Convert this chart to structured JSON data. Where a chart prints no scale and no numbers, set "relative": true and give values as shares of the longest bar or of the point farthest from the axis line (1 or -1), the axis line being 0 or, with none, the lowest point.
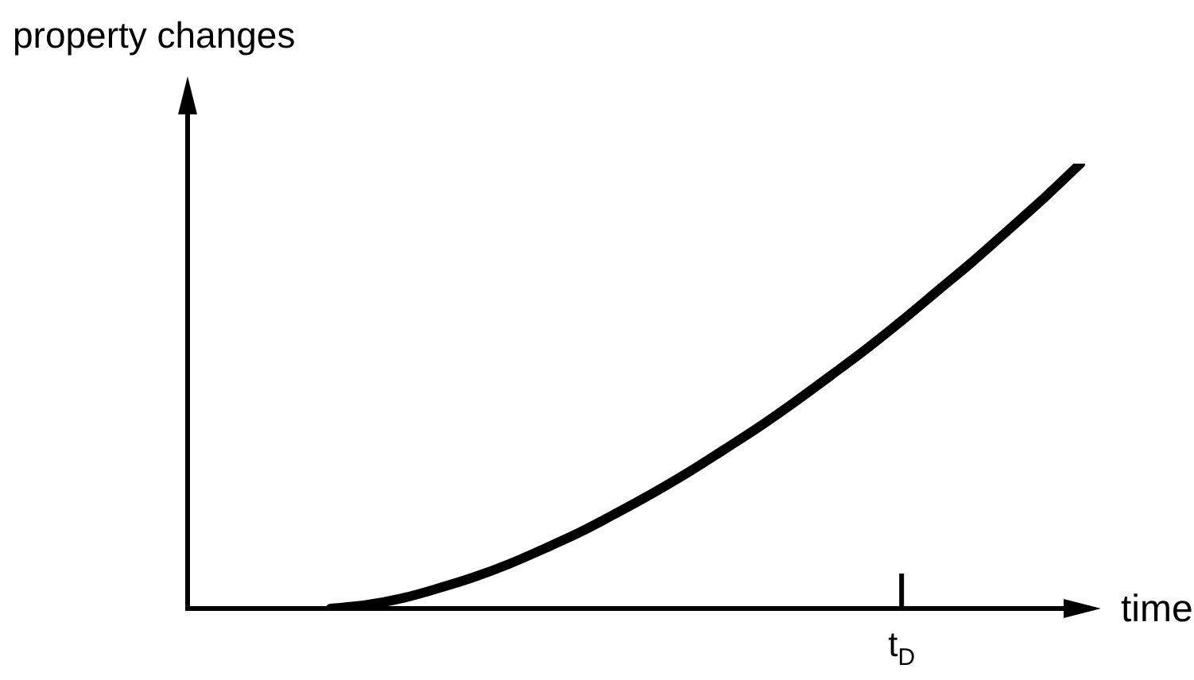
{
  "chart_data": {
    "type": "line",
    "xlabel": "time",
    "ylabel": "property changes",
    "relative": true,
    "legend": false,
    "marker": "none",
    "categories": [
      null,
      null,
      null,
      null,
      null,
      null,
      null,
      null,
      null,
      null,
      null,
      null,
      null,
      null,
      null,
      null,
      null,
      null,
      null,
      null,
      null,
      null,
      null,
      null,
      null,
      null,
      null
    ],
    "annotations": [
      "t$_{D}$"
    ],
    "series": [
      {
        "color": "#000000",
        "values": [
          null,
          null,
          null,
          null,
          0,
          0.008,
          0.023,
          0.045,
          0.07,
          0.1,
          0.135,
          0.172,
          0.214,
          0.258,
          0.305,
          0.356,
          0.408,
          0.464,
          0.523,
          0.583,
          0.647,
          0.714,
          0.781,
          0.852,
          0.924,
          1,
          null
        ]
      }
    ]
  }
}
